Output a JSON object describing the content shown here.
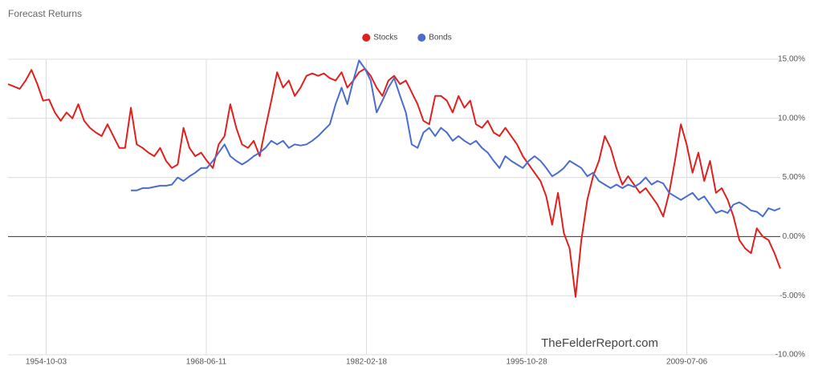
{
  "chart_data": {
    "type": "line",
    "title": "Forecast Returns",
    "watermark": "TheFelderReport.com",
    "x": [
      "1951-07-01",
      "1952-01-01",
      "1952-07-01",
      "1953-01-01",
      "1953-07-01",
      "1954-01-01",
      "1954-07-01",
      "1955-01-01",
      "1955-07-01",
      "1956-01-01",
      "1956-07-01",
      "1957-01-01",
      "1957-07-01",
      "1958-01-01",
      "1958-07-01",
      "1959-01-01",
      "1959-07-01",
      "1960-01-01",
      "1960-07-01",
      "1961-01-01",
      "1961-07-01",
      "1962-01-01",
      "1962-07-01",
      "1963-01-01",
      "1963-07-01",
      "1964-01-01",
      "1964-07-01",
      "1965-01-01",
      "1965-07-01",
      "1966-01-01",
      "1966-07-01",
      "1967-01-01",
      "1967-07-01",
      "1968-01-01",
      "1968-07-01",
      "1969-01-01",
      "1969-07-01",
      "1970-01-01",
      "1970-07-01",
      "1971-01-01",
      "1971-07-01",
      "1972-01-01",
      "1972-07-01",
      "1973-01-01",
      "1973-07-01",
      "1974-01-01",
      "1974-07-01",
      "1975-01-01",
      "1975-07-01",
      "1976-01-01",
      "1976-07-01",
      "1977-01-01",
      "1977-07-01",
      "1978-01-01",
      "1978-07-01",
      "1979-01-01",
      "1979-07-01",
      "1980-01-01",
      "1980-07-01",
      "1981-01-01",
      "1981-07-01",
      "1982-01-01",
      "1982-07-01",
      "1983-01-01",
      "1983-07-01",
      "1984-01-01",
      "1984-07-01",
      "1985-01-01",
      "1985-07-01",
      "1986-01-01",
      "1986-07-01",
      "1987-01-01",
      "1987-07-01",
      "1988-01-01",
      "1988-07-01",
      "1989-01-01",
      "1989-07-01",
      "1990-01-01",
      "1990-07-01",
      "1991-01-01",
      "1991-07-01",
      "1992-01-01",
      "1992-07-01",
      "1993-01-01",
      "1993-07-01",
      "1994-01-01",
      "1994-07-01",
      "1995-01-01",
      "1995-07-01",
      "1996-01-01",
      "1996-07-01",
      "1997-01-01",
      "1997-07-01",
      "1998-01-01",
      "1998-07-01",
      "1999-01-01",
      "1999-07-01",
      "2000-01-01",
      "2000-07-01",
      "2001-01-01",
      "2001-07-01",
      "2002-01-01",
      "2002-07-01",
      "2003-01-01",
      "2003-07-01",
      "2004-01-01",
      "2004-07-01",
      "2005-01-01",
      "2005-07-01",
      "2006-01-01",
      "2006-07-01",
      "2007-01-01",
      "2007-07-01",
      "2008-01-01",
      "2008-07-01",
      "2009-01-01",
      "2009-07-01",
      "2010-01-01",
      "2010-07-01",
      "2011-01-01",
      "2011-07-01",
      "2012-01-01",
      "2012-07-01",
      "2013-01-01",
      "2013-07-01",
      "2014-01-01",
      "2014-07-01",
      "2015-01-01",
      "2015-07-01",
      "2016-01-01",
      "2016-07-01",
      "2017-01-01",
      "2017-07-01"
    ],
    "series": [
      {
        "name": "Stocks",
        "color": "#e0201e",
        "values": [
          12.9,
          12.7,
          12.5,
          13.2,
          14.1,
          12.9,
          11.5,
          11.6,
          10.5,
          9.8,
          10.5,
          10.0,
          11.2,
          9.8,
          9.2,
          8.8,
          8.5,
          9.5,
          8.5,
          7.5,
          7.5,
          10.9,
          7.8,
          7.5,
          7.1,
          6.8,
          7.5,
          6.4,
          5.8,
          6.1,
          9.2,
          7.5,
          6.8,
          7.1,
          6.4,
          5.8,
          7.8,
          8.5,
          11.2,
          9.2,
          7.8,
          7.5,
          8.1,
          6.8,
          9.2,
          11.5,
          13.9,
          12.6,
          13.2,
          11.9,
          12.6,
          13.6,
          13.8,
          13.6,
          13.8,
          13.4,
          13.2,
          13.9,
          12.6,
          13.2,
          13.9,
          14.2,
          13.6,
          12.6,
          11.9,
          13.2,
          13.6,
          12.9,
          13.2,
          12.2,
          11.2,
          9.8,
          9.5,
          11.9,
          11.9,
          11.5,
          10.5,
          11.9,
          10.9,
          11.5,
          9.5,
          9.2,
          9.8,
          8.8,
          8.5,
          9.2,
          8.5,
          7.8,
          6.8,
          6.1,
          5.4,
          4.7,
          3.4,
          1.0,
          3.7,
          0.3,
          -1.0,
          -5.1,
          -0.3,
          3.1,
          5.1,
          6.4,
          8.5,
          7.5,
          5.8,
          4.4,
          5.1,
          4.4,
          3.7,
          4.1,
          3.4,
          2.7,
          1.7,
          3.7,
          6.4,
          9.5,
          7.8,
          5.4,
          7.1,
          4.7,
          6.4,
          3.7,
          4.1,
          3.1,
          1.7,
          -0.3,
          -1.0,
          -1.4,
          0.7,
          0.0,
          -0.3,
          -1.4,
          -2.7
        ]
      },
      {
        "name": "Bonds",
        "color": "#4a6cce",
        "values": [
          null,
          null,
          null,
          null,
          null,
          null,
          null,
          null,
          null,
          null,
          null,
          null,
          null,
          null,
          null,
          null,
          null,
          null,
          null,
          null,
          null,
          3.9,
          3.9,
          4.1,
          4.1,
          4.2,
          4.3,
          4.3,
          4.4,
          5.0,
          4.7,
          5.1,
          5.4,
          5.8,
          5.8,
          6.4,
          7.1,
          7.8,
          6.8,
          6.4,
          6.1,
          6.4,
          6.8,
          7.1,
          7.5,
          8.1,
          7.8,
          8.1,
          7.5,
          7.8,
          7.7,
          7.8,
          8.1,
          8.5,
          9.0,
          9.5,
          11.2,
          12.6,
          11.2,
          13.2,
          14.9,
          14.2,
          13.2,
          10.5,
          11.5,
          12.6,
          13.4,
          11.9,
          10.5,
          7.8,
          7.5,
          8.8,
          9.2,
          8.5,
          9.2,
          8.8,
          8.1,
          8.5,
          8.1,
          7.8,
          8.1,
          7.5,
          7.1,
          6.4,
          5.8,
          6.8,
          6.4,
          6.1,
          5.8,
          6.4,
          6.8,
          6.4,
          5.8,
          5.1,
          5.4,
          5.8,
          6.4,
          6.1,
          5.8,
          5.1,
          5.4,
          4.7,
          4.4,
          4.1,
          4.4,
          4.1,
          4.4,
          4.2,
          4.5,
          5.0,
          4.4,
          4.7,
          4.5,
          3.7,
          3.4,
          3.1,
          3.4,
          3.7,
          3.1,
          3.4,
          2.7,
          2.0,
          2.2,
          2.0,
          2.7,
          2.9,
          2.6,
          2.2,
          2.1,
          1.7,
          2.4,
          2.2,
          2.4
        ]
      }
    ],
    "xlim": [
      "1951-07-01",
      "2017-07-01"
    ],
    "xticks": [
      "1954-10-03",
      "1968-06-11",
      "1982-02-18",
      "1995-10-28",
      "2009-07-06"
    ],
    "ylim": [
      -10,
      15
    ],
    "yticks": [
      {
        "value": -10,
        "label": "-10.00%"
      },
      {
        "value": -5,
        "label": "-5.00%"
      },
      {
        "value": 0,
        "label": "0.00%"
      },
      {
        "value": 5,
        "label": "5.00%"
      },
      {
        "value": 10,
        "label": "10.00%"
      },
      {
        "value": 15,
        "label": "15.00%"
      }
    ],
    "grid": true,
    "legend": "top"
  }
}
